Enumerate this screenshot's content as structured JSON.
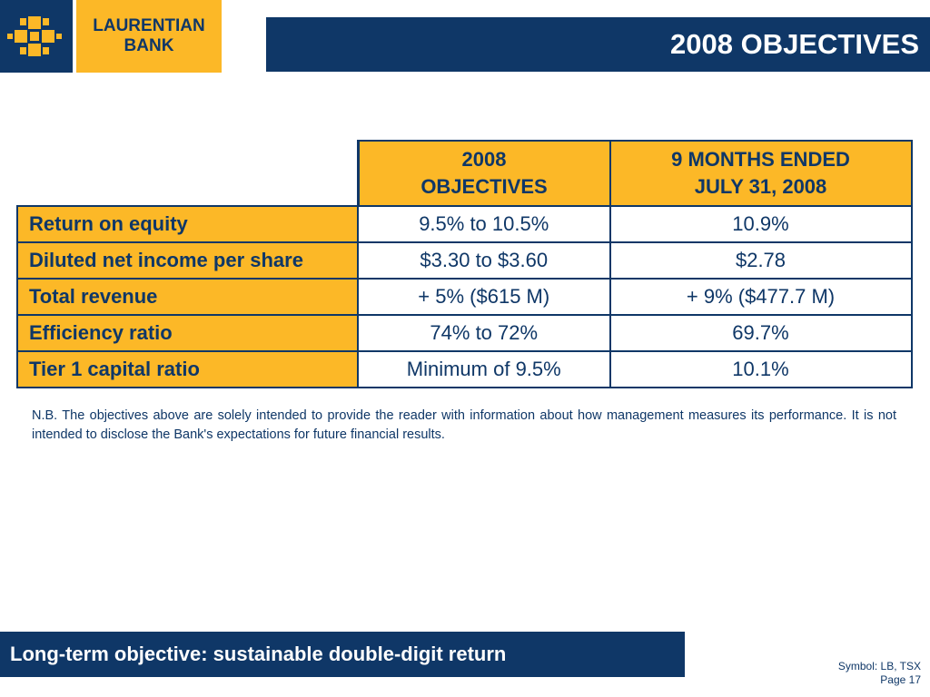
{
  "logo": {
    "line1": "LAURENTIAN",
    "line2": "BANK"
  },
  "title": "2008 OBJECTIVES",
  "table": {
    "headers": [
      {
        "line1": "2008",
        "line2": "OBJECTIVES"
      },
      {
        "line1": "9 MONTHS ENDED",
        "line2": "JULY 31, 2008"
      }
    ],
    "rows": [
      {
        "label": "Return on equity",
        "objective": "9.5% to 10.5%",
        "actual": "10.9%"
      },
      {
        "label": "Diluted net income per share",
        "objective": "$3.30 to $3.60",
        "actual": "$2.78"
      },
      {
        "label": "Total revenue",
        "objective": "+ 5% ($615 M)",
        "actual": "+ 9% ($477.7 M)"
      },
      {
        "label": "Efficiency ratio",
        "objective": "74% to 72%",
        "actual": "69.7%"
      },
      {
        "label": "Tier 1 capital ratio",
        "objective": "Minimum of 9.5%",
        "actual": "10.1%"
      }
    ]
  },
  "note": "N.B. The objectives above are solely intended to provide the reader with information about how management measures its performance. It is not intended to disclose the Bank's expectations for future financial results.",
  "footer": {
    "banner": "Long-term objective: sustainable double-digit return",
    "symbol": "Symbol: LB, TSX",
    "page": "Page 17"
  },
  "colors": {
    "navy": "#0f3767",
    "gold": "#fcb827"
  }
}
